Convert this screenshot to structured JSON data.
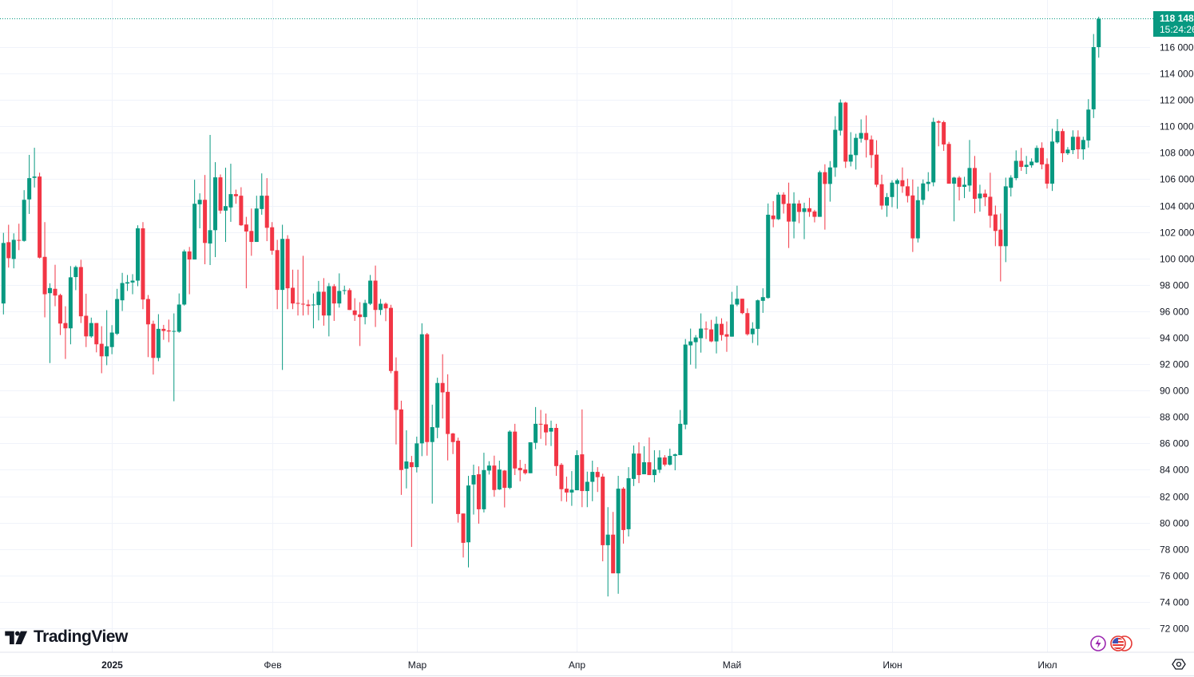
{
  "logo": {
    "text": "TradingView"
  },
  "price_tag": {
    "price": "118 148",
    "countdown": "15:24:26"
  },
  "colors": {
    "up": "#089981",
    "down": "#f23645",
    "grid": "#f0f3fa",
    "text": "#131722",
    "lightning": "#9c27b0",
    "flag": "#e53935"
  },
  "icons": {
    "lightning": "lightning-icon",
    "flag": "us-flag-icon",
    "settings": "settings-icon"
  },
  "chart_data": {
    "type": "candlestick",
    "title": "",
    "ylim": [
      71000,
      119400
    ],
    "y_ticks": [
      {
        "value": 116000,
        "label": "116 000"
      },
      {
        "value": 114000,
        "label": "114 000"
      },
      {
        "value": 112000,
        "label": "112 000"
      },
      {
        "value": 110000,
        "label": "110 000"
      },
      {
        "value": 108000,
        "label": "108 000"
      },
      {
        "value": 106000,
        "label": "106 000"
      },
      {
        "value": 104000,
        "label": "104 000"
      },
      {
        "value": 102000,
        "label": "102 000"
      },
      {
        "value": 100000,
        "label": "100 000"
      },
      {
        "value": 98000,
        "label": "98 000"
      },
      {
        "value": 96000,
        "label": "96 000"
      },
      {
        "value": 94000,
        "label": "94 000"
      },
      {
        "value": 92000,
        "label": "92 000"
      },
      {
        "value": 90000,
        "label": "90 000"
      },
      {
        "value": 88000,
        "label": "88 000"
      },
      {
        "value": 86000,
        "label": "86 000"
      },
      {
        "value": 84000,
        "label": "84 000"
      },
      {
        "value": 82000,
        "label": "82 000"
      },
      {
        "value": 80000,
        "label": "80 000"
      },
      {
        "value": 78000,
        "label": "78 000"
      },
      {
        "value": 76000,
        "label": "76 000"
      },
      {
        "value": 74000,
        "label": "74 000"
      },
      {
        "value": 72000,
        "label": "72 000"
      }
    ],
    "x_ticks": [
      {
        "index": 21,
        "label": "2025",
        "bold": true
      },
      {
        "index": 52,
        "label": "Фев"
      },
      {
        "index": 80,
        "label": "Мар"
      },
      {
        "index": 111,
        "label": "Апр"
      },
      {
        "index": 141,
        "label": "Май"
      },
      {
        "index": 172,
        "label": "Июн"
      },
      {
        "index": 202,
        "label": "Июл"
      }
    ],
    "last_price": 118148,
    "ohlc_fields": [
      "open",
      "high",
      "low",
      "close"
    ],
    "ohlc": [
      [
        96590,
        101940,
        95760,
        101170
      ],
      [
        101230,
        102550,
        99310,
        100020
      ],
      [
        99960,
        101900,
        99250,
        101410
      ],
      [
        101400,
        102630,
        100630,
        101380
      ],
      [
        101330,
        105170,
        101270,
        104440
      ],
      [
        104470,
        107840,
        103370,
        106080
      ],
      [
        106100,
        108380,
        105370,
        106200
      ],
      [
        106200,
        106490,
        100000,
        100060
      ],
      [
        100120,
        102750,
        95540,
        97290
      ],
      [
        97370,
        98120,
        92080,
        97760
      ],
      [
        97700,
        99520,
        96380,
        97190
      ],
      [
        97230,
        97330,
        94200,
        95070
      ],
      [
        95110,
        96380,
        92390,
        94710
      ],
      [
        94710,
        99420,
        93500,
        98570
      ],
      [
        98590,
        99460,
        97600,
        99350
      ],
      [
        99350,
        99900,
        95110,
        95620
      ],
      [
        95660,
        97330,
        93290,
        94100
      ],
      [
        94100,
        95520,
        94000,
        95110
      ],
      [
        95110,
        95110,
        92890,
        93500
      ],
      [
        93540,
        94870,
        91310,
        92590
      ],
      [
        92590,
        96080,
        91920,
        93350
      ],
      [
        93290,
        94950,
        92750,
        94390
      ],
      [
        94300,
        97700,
        94200,
        96930
      ],
      [
        96830,
        98910,
        96020,
        98140
      ],
      [
        98100,
        98750,
        97540,
        98200
      ],
      [
        98180,
        98810,
        97290,
        98320
      ],
      [
        98320,
        102510,
        97900,
        102280
      ],
      [
        102280,
        102750,
        96160,
        96890
      ],
      [
        96930,
        97230,
        92530,
        95010
      ],
      [
        95050,
        95290,
        91210,
        92470
      ],
      [
        92470,
        95780,
        92220,
        94670
      ],
      [
        94670,
        94970,
        93840,
        94510
      ],
      [
        94550,
        95370,
        93660,
        94470
      ],
      [
        94470,
        95840,
        89190,
        94510
      ],
      [
        94450,
        97350,
        94370,
        96510
      ],
      [
        96510,
        100670,
        96430,
        100530
      ],
      [
        100530,
        100870,
        97290,
        99920
      ],
      [
        99920,
        105960,
        99920,
        104140
      ],
      [
        104100,
        104930,
        102280,
        104440
      ],
      [
        104440,
        106320,
        99560,
        101170
      ],
      [
        101130,
        109350,
        99500,
        102140
      ],
      [
        102140,
        107290,
        100100,
        106140
      ],
      [
        106140,
        106360,
        103390,
        103620
      ],
      [
        103620,
        106870,
        101250,
        103960
      ],
      [
        103860,
        107170,
        102770,
        104870
      ],
      [
        104870,
        105210,
        104140,
        104710
      ],
      [
        104750,
        105390,
        102470,
        102510
      ],
      [
        102570,
        103150,
        97740,
        102040
      ],
      [
        102080,
        103780,
        100200,
        101250
      ],
      [
        101250,
        104750,
        101250,
        103780
      ],
      [
        103740,
        106440,
        103310,
        104750
      ],
      [
        104750,
        106080,
        101310,
        102320
      ],
      [
        102360,
        102750,
        100280,
        100590
      ],
      [
        100630,
        101410,
        96160,
        97620
      ],
      [
        97620,
        102550,
        91560,
        101480
      ],
      [
        101480,
        101760,
        96160,
        97740
      ],
      [
        97780,
        99150,
        96160,
        96590
      ],
      [
        96630,
        99150,
        95680,
        96570
      ],
      [
        96570,
        100200,
        95680,
        96510
      ],
      [
        96510,
        96870,
        95720,
        96400
      ],
      [
        96470,
        97350,
        94710,
        96510
      ],
      [
        96470,
        98300,
        95310,
        97480
      ],
      [
        97480,
        98510,
        94910,
        95680
      ],
      [
        95680,
        98140,
        94100,
        97900
      ],
      [
        97900,
        98060,
        95270,
        96590
      ],
      [
        96590,
        98870,
        96280,
        97540
      ],
      [
        97540,
        97940,
        97270,
        97600
      ],
      [
        97600,
        97740,
        96100,
        96100
      ],
      [
        96060,
        96990,
        95270,
        95720
      ],
      [
        95760,
        96690,
        93370,
        95560
      ],
      [
        95560,
        96870,
        95010,
        96630
      ],
      [
        96570,
        98750,
        96470,
        98320
      ],
      [
        98320,
        99460,
        94810,
        96100
      ],
      [
        96100,
        96930,
        95720,
        96570
      ],
      [
        96570,
        96670,
        95250,
        96220
      ],
      [
        96260,
        96490,
        91310,
        91480
      ],
      [
        91480,
        92510,
        85920,
        88530
      ],
      [
        88570,
        89230,
        82100,
        83980
      ],
      [
        84080,
        86990,
        82590,
        84630
      ],
      [
        84570,
        85050,
        78160,
        84200
      ],
      [
        84200,
        86510,
        83800,
        86000
      ],
      [
        86000,
        95090,
        85030,
        94260
      ],
      [
        94260,
        94360,
        85070,
        86100
      ],
      [
        86100,
        88930,
        81440,
        87230
      ],
      [
        87190,
        90970,
        86390,
        90570
      ],
      [
        90570,
        92750,
        87880,
        89860
      ],
      [
        89900,
        91230,
        84710,
        86710
      ],
      [
        86750,
        86790,
        85190,
        86100
      ],
      [
        86200,
        86430,
        80000,
        80650
      ],
      [
        80690,
        80690,
        77360,
        78470
      ],
      [
        78510,
        83540,
        76610,
        82810
      ],
      [
        82890,
        84390,
        80610,
        83600
      ],
      [
        83660,
        84260,
        79920,
        81010
      ],
      [
        81010,
        85290,
        80770,
        83980
      ],
      [
        83940,
        84650,
        83640,
        84320
      ],
      [
        84320,
        85070,
        81960,
        82470
      ],
      [
        82510,
        84690,
        82470,
        84020
      ],
      [
        83940,
        83980,
        81150,
        82630
      ],
      [
        82630,
        86990,
        82530,
        86890
      ],
      [
        86890,
        87480,
        83600,
        84100
      ],
      [
        84140,
        84750,
        83130,
        83960
      ],
      [
        84020,
        84450,
        83640,
        83740
      ],
      [
        83740,
        86080,
        83740,
        86080
      ],
      [
        86040,
        88750,
        85560,
        87480
      ],
      [
        87480,
        88530,
        86340,
        87430
      ],
      [
        87440,
        88260,
        85840,
        86830
      ],
      [
        86890,
        87720,
        85800,
        87170
      ],
      [
        87170,
        87480,
        83540,
        84280
      ],
      [
        84380,
        84510,
        81620,
        82530
      ],
      [
        82570,
        83480,
        81580,
        82280
      ],
      [
        82280,
        83900,
        81270,
        82490
      ],
      [
        82450,
        85480,
        82450,
        85110
      ],
      [
        85170,
        88570,
        81170,
        82390
      ],
      [
        82390,
        83860,
        81170,
        83090
      ],
      [
        83090,
        84690,
        81620,
        83840
      ],
      [
        83840,
        84200,
        82320,
        83440
      ],
      [
        83480,
        83700,
        77070,
        78290
      ],
      [
        78290,
        81170,
        74410,
        79090
      ],
      [
        79090,
        80810,
        76160,
        76160
      ],
      [
        76160,
        83540,
        74610,
        82570
      ],
      [
        82570,
        82690,
        78410,
        79440
      ],
      [
        79500,
        84200,
        78950,
        83360
      ],
      [
        83310,
        85840,
        82770,
        85230
      ],
      [
        85230,
        86080,
        82990,
        83600
      ],
      [
        83660,
        85780,
        83660,
        84570
      ],
      [
        84570,
        86450,
        83600,
        83600
      ],
      [
        83600,
        85480,
        83050,
        84020
      ],
      [
        84000,
        85480,
        83760,
        84930
      ],
      [
        84930,
        85110,
        84260,
        84390
      ],
      [
        84390,
        85600,
        84320,
        85050
      ],
      [
        85050,
        85230,
        83960,
        85170
      ],
      [
        85110,
        88530,
        85110,
        87480
      ],
      [
        87420,
        93900,
        87070,
        93480
      ],
      [
        93420,
        94690,
        91960,
        93720
      ],
      [
        93660,
        94200,
        91660,
        94020
      ],
      [
        93960,
        95840,
        92870,
        94690
      ],
      [
        94690,
        95230,
        93900,
        94650
      ],
      [
        94630,
        95350,
        93660,
        93720
      ],
      [
        93720,
        95600,
        92810,
        95050
      ],
      [
        95050,
        95470,
        93780,
        94200
      ],
      [
        94260,
        95230,
        92930,
        94080
      ],
      [
        94080,
        97470,
        94080,
        96510
      ],
      [
        96510,
        97940,
        96380,
        96950
      ],
      [
        96950,
        96950,
        95780,
        95860
      ],
      [
        95860,
        96220,
        94160,
        94260
      ],
      [
        94260,
        95170,
        93600,
        94690
      ],
      [
        94670,
        96890,
        93420,
        96830
      ],
      [
        96790,
        97740,
        95880,
        97070
      ],
      [
        97010,
        104160,
        96950,
        103310
      ],
      [
        103250,
        104340,
        102360,
        102970
      ],
      [
        102970,
        105010,
        102910,
        104830
      ],
      [
        104830,
        105010,
        103400,
        104120
      ],
      [
        104160,
        105740,
        100790,
        102790
      ],
      [
        102790,
        105010,
        101520,
        104160
      ],
      [
        104160,
        104410,
        102670,
        103520
      ],
      [
        103520,
        104220,
        101460,
        103800
      ],
      [
        103800,
        104590,
        103150,
        103520
      ],
      [
        103560,
        103680,
        102730,
        103150
      ],
      [
        103150,
        106650,
        103150,
        106530
      ],
      [
        106530,
        107130,
        102180,
        105640
      ],
      [
        105640,
        107370,
        104300,
        106890
      ],
      [
        106890,
        110770,
        106180,
        109740
      ],
      [
        109680,
        112040,
        109310,
        111800
      ],
      [
        111800,
        111860,
        106850,
        107330
      ],
      [
        107330,
        109560,
        106970,
        107860
      ],
      [
        107820,
        109440,
        106730,
        109130
      ],
      [
        109070,
        110530,
        108770,
        109500
      ],
      [
        109500,
        110830,
        107640,
        108970
      ],
      [
        109010,
        109310,
        106850,
        107820
      ],
      [
        107860,
        108950,
        105400,
        105580
      ],
      [
        105620,
        106340,
        103700,
        104000
      ],
      [
        104000,
        104950,
        103150,
        104650
      ],
      [
        104650,
        105920,
        103880,
        105740
      ],
      [
        105640,
        106040,
        103760,
        105920
      ],
      [
        105920,
        106890,
        104970,
        105460
      ],
      [
        105460,
        106040,
        104240,
        104730
      ],
      [
        104770,
        105980,
        100490,
        101520
      ],
      [
        101520,
        105440,
        101210,
        104410
      ],
      [
        104430,
        105980,
        104060,
        105680
      ],
      [
        105640,
        106530,
        105090,
        105800
      ],
      [
        105760,
        110650,
        105460,
        110340
      ],
      [
        110380,
        110470,
        108490,
        110280
      ],
      [
        110320,
        110430,
        108140,
        108630
      ],
      [
        108670,
        108830,
        105660,
        105660
      ],
      [
        105660,
        106180,
        102810,
        106120
      ],
      [
        106120,
        106240,
        104390,
        105420
      ],
      [
        105420,
        106180,
        104570,
        105580
      ],
      [
        105520,
        108970,
        105050,
        106850
      ],
      [
        106850,
        107760,
        103420,
        104510
      ],
      [
        104550,
        105580,
        103540,
        104910
      ],
      [
        104910,
        105210,
        103960,
        104630
      ],
      [
        104670,
        106490,
        102320,
        103230
      ],
      [
        103330,
        104000,
        100930,
        102080
      ],
      [
        102180,
        103400,
        98260,
        100930
      ],
      [
        100930,
        106120,
        99720,
        105460
      ],
      [
        105350,
        106300,
        104690,
        106120
      ],
      [
        106080,
        108180,
        105920,
        107390
      ],
      [
        107390,
        108370,
        106630,
        106930
      ],
      [
        106930,
        107760,
        106390,
        107090
      ],
      [
        107050,
        107580,
        106870,
        107330
      ],
      [
        107270,
        108550,
        107230,
        108370
      ],
      [
        108370,
        108790,
        106750,
        107110
      ],
      [
        107150,
        107580,
        105290,
        105660
      ],
      [
        105660,
        109820,
        105110,
        108850
      ],
      [
        108790,
        110550,
        108690,
        109640
      ],
      [
        109640,
        109820,
        107290,
        107960
      ],
      [
        107960,
        108430,
        107840,
        108240
      ],
      [
        108200,
        109700,
        107900,
        109210
      ],
      [
        109210,
        109700,
        107540,
        108260
      ],
      [
        108260,
        109210,
        107480,
        108970
      ],
      [
        108930,
        112060,
        108390,
        111270
      ],
      [
        111290,
        116990,
        110630,
        116000
      ],
      [
        116000,
        118300,
        115200,
        118148
      ]
    ]
  }
}
